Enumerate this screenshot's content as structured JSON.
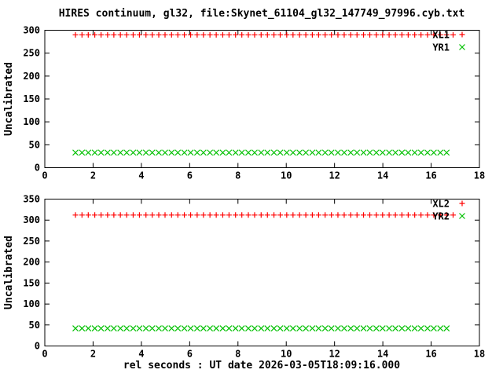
{
  "title": "HIRES continuum, gl32, file:Skynet_61104_gl32_147749_97996.cyb.txt",
  "xlabel": "rel seconds : UT date 2026-03-05T18:09:16.000",
  "colors": {
    "red": "#ff0000",
    "green": "#00c000",
    "text": "#000000",
    "background": "#ffffff"
  },
  "chart_data": [
    {
      "type": "scatter",
      "panel": "top",
      "ylabel": "Uncalibrated",
      "xlim": [
        0,
        18
      ],
      "ylim": [
        0,
        300
      ],
      "xticks": [
        0,
        2,
        4,
        6,
        8,
        10,
        12,
        14,
        16,
        18
      ],
      "yticks": [
        0,
        50,
        100,
        150,
        200,
        250,
        300
      ],
      "grid": false,
      "legend_position": "top-right",
      "series": [
        {
          "name": "XL1",
          "marker": "plus",
          "color": "#ff0000",
          "y_const": 290,
          "x": [
            1.27,
            1.54,
            1.8,
            2.07,
            2.33,
            2.6,
            2.86,
            3.13,
            3.39,
            3.66,
            3.92,
            4.19,
            4.45,
            4.72,
            4.98,
            5.25,
            5.51,
            5.78,
            6.04,
            6.31,
            6.57,
            6.84,
            7.1,
            7.37,
            7.63,
            7.9,
            8.16,
            8.43,
            8.69,
            8.96,
            9.22,
            9.49,
            9.75,
            10.02,
            10.28,
            10.55,
            10.81,
            11.08,
            11.34,
            11.61,
            11.87,
            12.14,
            12.4,
            12.67,
            12.93,
            13.2,
            13.46,
            13.73,
            13.99,
            14.26,
            14.52,
            14.79,
            15.05,
            15.32,
            15.58,
            15.85,
            16.11,
            16.38,
            16.64,
            16.91
          ]
        },
        {
          "name": "YR1",
          "marker": "cross",
          "color": "#00c000",
          "y_const": 33,
          "x": [
            1.27,
            1.54,
            1.8,
            2.07,
            2.33,
            2.6,
            2.86,
            3.13,
            3.39,
            3.66,
            3.92,
            4.19,
            4.45,
            4.72,
            4.98,
            5.25,
            5.51,
            5.78,
            6.04,
            6.31,
            6.57,
            6.84,
            7.1,
            7.37,
            7.63,
            7.9,
            8.16,
            8.43,
            8.69,
            8.96,
            9.22,
            9.49,
            9.75,
            10.02,
            10.28,
            10.55,
            10.81,
            11.08,
            11.34,
            11.61,
            11.87,
            12.14,
            12.4,
            12.67,
            12.93,
            13.2,
            13.46,
            13.73,
            13.99,
            14.26,
            14.52,
            14.79,
            15.05,
            15.32,
            15.58,
            15.85,
            16.11,
            16.38,
            16.64
          ]
        }
      ]
    },
    {
      "type": "scatter",
      "panel": "bottom",
      "ylabel": "Uncalibrated",
      "xlim": [
        0,
        18
      ],
      "ylim": [
        0,
        350
      ],
      "xticks": [
        0,
        2,
        4,
        6,
        8,
        10,
        12,
        14,
        16,
        18
      ],
      "yticks": [
        0,
        50,
        100,
        150,
        200,
        250,
        300,
        350
      ],
      "grid": false,
      "legend_position": "top-right",
      "series": [
        {
          "name": "XL2",
          "marker": "plus",
          "color": "#ff0000",
          "y_const": 312,
          "x": [
            1.27,
            1.54,
            1.8,
            2.07,
            2.33,
            2.6,
            2.86,
            3.13,
            3.39,
            3.66,
            3.92,
            4.19,
            4.45,
            4.72,
            4.98,
            5.25,
            5.51,
            5.78,
            6.04,
            6.31,
            6.57,
            6.84,
            7.1,
            7.37,
            7.63,
            7.9,
            8.16,
            8.43,
            8.69,
            8.96,
            9.22,
            9.49,
            9.75,
            10.02,
            10.28,
            10.55,
            10.81,
            11.08,
            11.34,
            11.61,
            11.87,
            12.14,
            12.4,
            12.67,
            12.93,
            13.2,
            13.46,
            13.73,
            13.99,
            14.26,
            14.52,
            14.79,
            15.05,
            15.32,
            15.58,
            15.85,
            16.11,
            16.38,
            16.64,
            16.91
          ]
        },
        {
          "name": "YR2",
          "marker": "cross",
          "color": "#00c000",
          "y_const": 42,
          "x": [
            1.27,
            1.54,
            1.8,
            2.07,
            2.33,
            2.6,
            2.86,
            3.13,
            3.39,
            3.66,
            3.92,
            4.19,
            4.45,
            4.72,
            4.98,
            5.25,
            5.51,
            5.78,
            6.04,
            6.31,
            6.57,
            6.84,
            7.1,
            7.37,
            7.63,
            7.9,
            8.16,
            8.43,
            8.69,
            8.96,
            9.22,
            9.49,
            9.75,
            10.02,
            10.28,
            10.55,
            10.81,
            11.08,
            11.34,
            11.61,
            11.87,
            12.14,
            12.4,
            12.67,
            12.93,
            13.2,
            13.46,
            13.73,
            13.99,
            14.26,
            14.52,
            14.79,
            15.05,
            15.32,
            15.58,
            15.85,
            16.11,
            16.38,
            16.64
          ]
        }
      ]
    }
  ]
}
